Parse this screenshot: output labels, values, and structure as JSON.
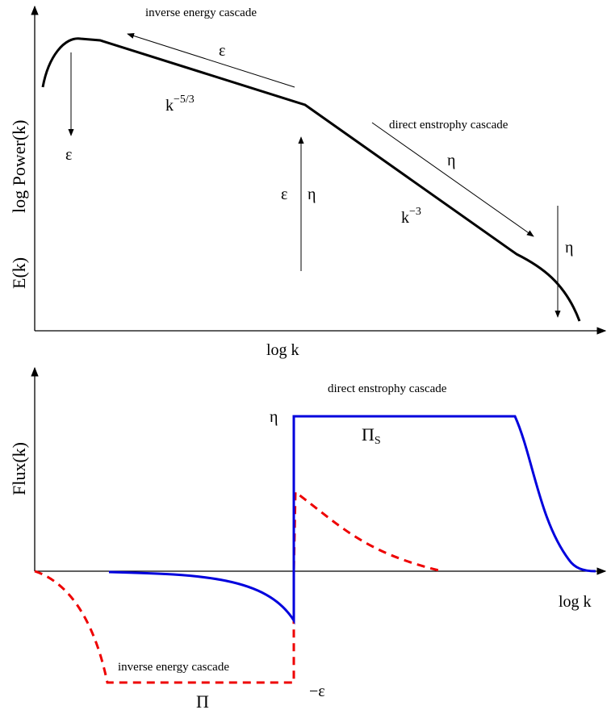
{
  "top_panel": {
    "ylabel_energy": "E(k)",
    "ylabel_power": "log Power(k)",
    "xlabel": "log k",
    "inverse_cascade_label": "inverse energy cascade",
    "direct_cascade_label": "direct enstrophy cascade",
    "epsilon": "ε",
    "eta": "η",
    "k_base": "k",
    "slope_inverse_exp": "−5/3",
    "slope_direct_exp": "−3"
  },
  "bottom_panel": {
    "ylabel": "Flux(k)",
    "xlabel": "log k",
    "direct_cascade_label": "direct enstrophy cascade",
    "inverse_cascade_label": "inverse energy cascade",
    "eta_level": "η",
    "neg_epsilon_level": "−ε",
    "pi_label": "Π",
    "pi_s_label": "Π",
    "pi_s_sub": "S",
    "colors": {
      "enstrophy_flux": "#0000dd",
      "energy_flux": "#ee0000"
    }
  }
}
